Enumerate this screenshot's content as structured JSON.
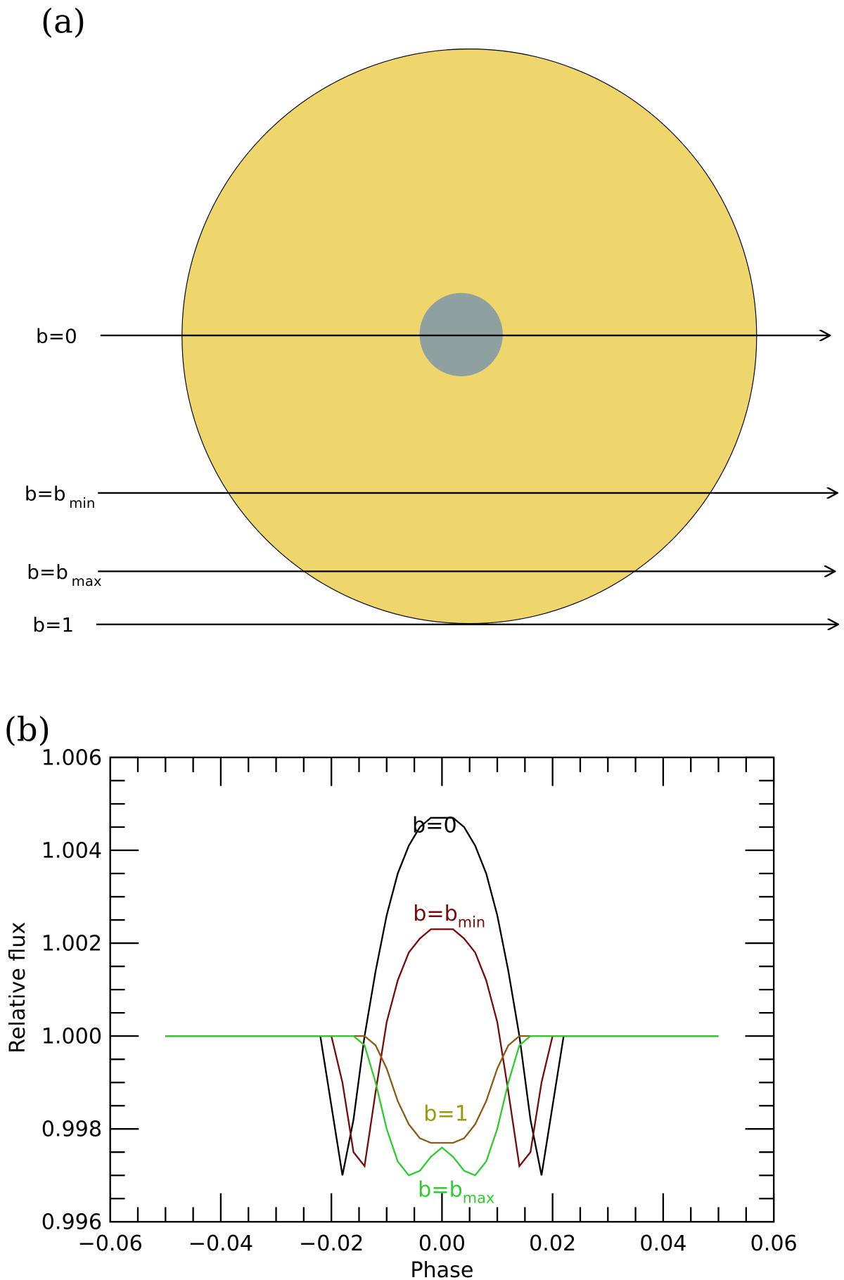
{
  "panel_a": {
    "label": "(a)",
    "paths": [
      {
        "label": "b=0"
      },
      {
        "label": "b=b",
        "sub": "min"
      },
      {
        "label": "b=b",
        "sub": "max"
      },
      {
        "label": "b=1"
      }
    ]
  },
  "chart_data": {
    "type": "line",
    "panel_label": "(b)",
    "x_label": "Phase",
    "y_label": "Relative flux",
    "x": [
      -0.05,
      -0.024,
      -0.022,
      -0.02,
      -0.018,
      -0.016,
      -0.014,
      -0.012,
      -0.01,
      -0.008,
      -0.006,
      -0.004,
      -0.002,
      0,
      0.002,
      0.004,
      0.006,
      0.008,
      0.01,
      0.012,
      0.014,
      0.016,
      0.018,
      0.02,
      0.022,
      0.024,
      0.05
    ],
    "series": [
      {
        "name": "b=0",
        "color": "#000000",
        "label_color": "#000000",
        "values": [
          1,
          1,
          1,
          0.9985,
          0.997,
          0.9982,
          1,
          1.0014,
          1.0026,
          1.0035,
          1.0041,
          1.0045,
          1.0047,
          1.0047,
          1.0047,
          1.0045,
          1.0041,
          1.0035,
          1.0026,
          1.0014,
          1,
          0.9982,
          0.997,
          0.9985,
          1,
          1,
          1
        ]
      },
      {
        "name": "b=b",
        "name_sub": "min",
        "color": "#7a0a0a",
        "label_color": "#7a0a0a",
        "values": [
          1,
          1,
          1,
          1,
          0.999,
          0.9975,
          0.9972,
          0.9988,
          1.0003,
          1.0012,
          1.0018,
          1.0021,
          1.0023,
          1.0023,
          1.0023,
          1.0021,
          1.0018,
          1.0012,
          1.0003,
          0.9988,
          0.9972,
          0.9975,
          0.999,
          1,
          1,
          1,
          1
        ]
      },
      {
        "name": "b=1",
        "color": "#8b5a14",
        "label_color": "#9a9a10",
        "values": [
          1,
          1,
          1,
          1,
          1,
          1,
          1,
          0.9998,
          0.9993,
          0.9986,
          0.9981,
          0.9978,
          0.9977,
          0.9977,
          0.9977,
          0.9978,
          0.9981,
          0.9986,
          0.9993,
          0.9998,
          1,
          1,
          1,
          1,
          1,
          1,
          1
        ]
      },
      {
        "name": "b=b",
        "name_sub": "max",
        "color": "#2ecc2e",
        "label_color": "#2ecc2e",
        "values": [
          1,
          1,
          1,
          1,
          1,
          1,
          0.9998,
          0.999,
          0.998,
          0.9973,
          0.997,
          0.9971,
          0.9974,
          0.9976,
          0.9974,
          0.9971,
          0.997,
          0.9973,
          0.998,
          0.999,
          0.9998,
          1,
          1,
          1,
          1,
          1,
          1
        ]
      }
    ],
    "xlim": [
      -0.06,
      0.06
    ],
    "xticks": [
      {
        "value": -0.06,
        "label": "−0.06"
      },
      {
        "value": -0.04,
        "label": "−0.04"
      },
      {
        "value": -0.02,
        "label": "−0.02"
      },
      {
        "value": 0,
        "label": "0.00"
      },
      {
        "value": 0.02,
        "label": "0.02"
      },
      {
        "value": 0.04,
        "label": "0.04"
      },
      {
        "value": 0.06,
        "label": "0.06"
      }
    ],
    "ylim": [
      0.996,
      1.006
    ],
    "yticks": [
      0.996,
      0.998,
      {
        "value": 1,
        "label": "1.000"
      },
      1.002,
      1.004,
      1.006
    ],
    "x_minor_ticks": 3,
    "y_minor_ticks": 3,
    "grid": false
  }
}
